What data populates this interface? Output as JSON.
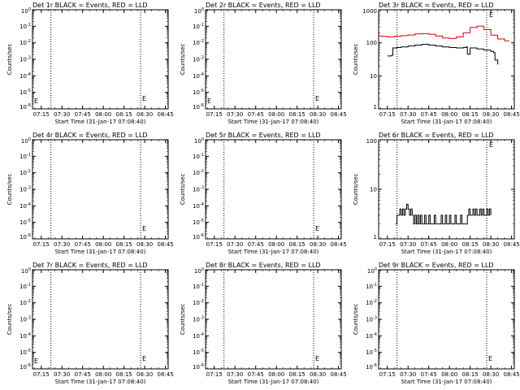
{
  "chart_data": [
    {
      "type": "line",
      "title": "Det 1r BLACK = Events, RED = LLD",
      "xlabel": "Start Time (31-Jan-17 07:08:40)",
      "ylabel": "Counts/sec",
      "x_ticks": [
        "07:15",
        "07:30",
        "07:45",
        "08:00",
        "08:15",
        "08:30",
        "08:45"
      ],
      "y_scale": "log",
      "y_ticks": [
        "10^0",
        "10^-1",
        "10^-2",
        "10^-3",
        "10^-4",
        "10^-5",
        "10^-6"
      ],
      "markers": [
        "E",
        "E"
      ],
      "series": []
    },
    {
      "type": "line",
      "title": "Det 2r BLACK = Events, RED = LLD",
      "xlabel": "Start Time (31-Jan-17 07:08:40)",
      "ylabel": "Counts/sec",
      "x_ticks": [
        "07:15",
        "07:30",
        "07:45",
        "08:00",
        "08:15",
        "08:30",
        "08:45"
      ],
      "y_scale": "log",
      "y_ticks": [
        "10^0",
        "10^-1",
        "10^-2",
        "10^-3",
        "10^-4",
        "10^-5",
        "10^-6"
      ],
      "markers": [
        "E",
        "E"
      ],
      "series": []
    },
    {
      "type": "line",
      "title": "Det 3r BLACK = Events, RED = LLD",
      "xlabel": "Start Time (31-Jan-17 07:08:40)",
      "ylabel": "Counts/sec",
      "x_ticks": [
        "07:15",
        "07:30",
        "07:45",
        "08:00",
        "08:15",
        "08:30",
        "08:45"
      ],
      "y_scale": "log",
      "y_range": [
        1,
        1000
      ],
      "y_ticks": [
        "1000",
        "100",
        "10",
        "1"
      ],
      "markers": [
        "E"
      ],
      "series": [
        {
          "color": "#e00000",
          "x": [
            "07:09",
            "07:12",
            "07:15",
            "07:20",
            "07:25",
            "07:30",
            "07:35",
            "07:40",
            "07:45",
            "07:50",
            "07:55",
            "08:00",
            "08:05",
            "08:10",
            "08:15",
            "08:20",
            "08:25",
            "08:30",
            "08:35",
            "08:40",
            "08:43"
          ],
          "y": [
            160,
            155,
            150,
            158,
            165,
            172,
            185,
            190,
            180,
            160,
            140,
            135,
            150,
            200,
            290,
            320,
            250,
            170,
            130,
            115,
            110
          ]
        },
        {
          "color": "#000000",
          "x": [
            "07:15",
            "07:18",
            "07:19",
            "07:22",
            "07:25",
            "07:30",
            "07:35",
            "07:40",
            "07:45",
            "07:50",
            "07:55",
            "08:00",
            "08:05",
            "08:10",
            "08:12",
            "08:13",
            "08:15",
            "08:20",
            "08:25",
            "08:30",
            "08:32",
            "08:33",
            "08:35"
          ],
          "y": [
            40,
            42,
            70,
            72,
            75,
            80,
            85,
            90,
            85,
            80,
            75,
            72,
            70,
            72,
            75,
            45,
            70,
            65,
            60,
            55,
            50,
            30,
            22
          ]
        }
      ]
    },
    {
      "type": "line",
      "title": "Det 4r BLACK = Events, RED = LLD",
      "xlabel": "Start Time (31-Jan-17 07:08:40)",
      "ylabel": "Counts/sec",
      "x_ticks": [
        "07:15",
        "07:30",
        "07:45",
        "08:00",
        "08:15",
        "08:30",
        "08:45"
      ],
      "y_scale": "log",
      "y_ticks": [
        "10^0",
        "10^-1",
        "10^-2",
        "10^-3",
        "10^-4",
        "10^-5",
        "10^-6"
      ],
      "markers": [
        "E"
      ],
      "series": []
    },
    {
      "type": "line",
      "title": "Det 5r BLACK = Events, RED = LLD",
      "xlabel": "Start Time (31-Jan-17 07:08:40)",
      "ylabel": "Counts/sec",
      "x_ticks": [
        "07:15",
        "07:30",
        "07:45",
        "08:00",
        "08:15",
        "08:30",
        "08:45"
      ],
      "y_scale": "log",
      "y_ticks": [
        "10^0",
        "10^-1",
        "10^-2",
        "10^-3",
        "10^-4",
        "10^-5",
        "10^-6"
      ],
      "markers": [
        "E"
      ],
      "series": []
    },
    {
      "type": "line",
      "title": "Det 6r BLACK = Events, RED = LLD",
      "xlabel": "Start Time (31-Jan-17 07:08:40)",
      "ylabel": "Counts/sec",
      "x_ticks": [
        "07:15",
        "07:30",
        "07:45",
        "08:00",
        "08:15",
        "08:30",
        "08:45"
      ],
      "y_scale": "log",
      "y_range": [
        1,
        100
      ],
      "y_ticks": [
        "100",
        "10",
        "1"
      ],
      "markers": [
        "E"
      ],
      "series": [
        {
          "color": "#000000",
          "x": [
            "07:21",
            "07:22",
            "07:23",
            "07:24",
            "07:25",
            "07:26",
            "07:27",
            "07:28",
            "07:29",
            "07:30",
            "07:31",
            "07:32",
            "07:33",
            "07:34",
            "07:35",
            "07:36",
            "07:37",
            "07:38",
            "07:39",
            "07:40",
            "07:41",
            "07:42",
            "07:43",
            "07:44",
            "07:45",
            "07:46",
            "07:47",
            "07:48",
            "07:49",
            "07:50",
            "07:51",
            "07:52",
            "07:53",
            "07:54",
            "07:55",
            "07:56",
            "07:57",
            "07:58",
            "07:59",
            "08:00",
            "08:01",
            "08:02",
            "08:03",
            "08:04",
            "08:05",
            "08:06",
            "08:07",
            "08:08",
            "08:09",
            "08:10",
            "08:11",
            "08:12",
            "08:13",
            "08:14",
            "08:15",
            "08:16",
            "08:17",
            "08:18",
            "08:19",
            "08:20",
            "08:21",
            "08:22",
            "08:23",
            "08:24",
            "08:25",
            "08:26",
            "08:27",
            "08:28",
            "08:29",
            "08:30"
          ],
          "y": [
            2,
            3,
            3,
            4,
            3,
            4,
            3,
            4,
            5,
            4,
            3,
            4,
            3,
            2,
            3,
            2,
            3,
            2,
            3,
            2,
            2,
            3,
            2,
            2,
            3,
            2,
            2,
            2,
            3,
            2,
            2,
            2,
            2,
            3,
            2,
            2,
            3,
            2,
            2,
            3,
            2,
            2,
            2,
            3,
            2,
            2,
            2,
            3,
            2,
            2,
            2,
            2,
            3,
            4,
            3,
            3,
            4,
            3,
            4,
            3,
            3,
            4,
            3,
            4,
            3,
            3,
            4,
            3,
            4,
            3
          ]
        }
      ]
    },
    {
      "type": "line",
      "title": "Det 7r BLACK = Events, RED = LLD",
      "xlabel": "Start Time (31-Jan-17 07:08:40)",
      "ylabel": "Counts/sec",
      "x_ticks": [
        "07:15",
        "07:30",
        "07:45",
        "08:00",
        "08:15",
        "08:30",
        "08:45"
      ],
      "y_scale": "log",
      "y_ticks": [
        "10^0",
        "10^-1",
        "10^-2",
        "10^-3",
        "10^-4",
        "10^-5",
        "10^-6"
      ],
      "markers": [
        "E",
        "E"
      ],
      "series": []
    },
    {
      "type": "line",
      "title": "Det 8r BLACK = Events, RED = LLD",
      "xlabel": "Start Time (31-Jan-17 07:08:40)",
      "ylabel": "Counts/sec",
      "x_ticks": [
        "07:15",
        "07:30",
        "07:45",
        "08:00",
        "08:15",
        "08:30",
        "08:45"
      ],
      "y_scale": "log",
      "y_ticks": [
        "10^0",
        "10^-1",
        "10^-2",
        "10^-3",
        "10^-4",
        "10^-5",
        "10^-6"
      ],
      "markers": [
        "E"
      ],
      "series": []
    },
    {
      "type": "line",
      "title": "Det 9r BLACK = Events, RED = LLD",
      "xlabel": "Start Time (31-Jan-17 07:08:40)",
      "ylabel": "Counts/sec",
      "x_ticks": [
        "07:15",
        "07:30",
        "07:45",
        "08:00",
        "08:15",
        "08:30",
        "08:45"
      ],
      "y_scale": "log",
      "y_ticks": [
        "10^0",
        "10^-1",
        "10^-2",
        "10^-3",
        "10^-4",
        "10^-5",
        "10^-6"
      ],
      "markers": [
        "E"
      ],
      "series": []
    }
  ]
}
